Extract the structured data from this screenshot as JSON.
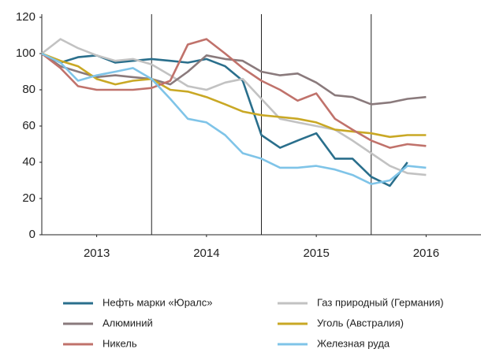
{
  "chart_data": {
    "type": "line",
    "x": [
      2013,
      2013.17,
      2013.33,
      2013.5,
      2013.67,
      2013.83,
      2014,
      2014.17,
      2014.33,
      2014.5,
      2014.67,
      2014.83,
      2015,
      2015.17,
      2015.33,
      2015.5,
      2015.67,
      2015.83,
      2016,
      2016.17,
      2016.33,
      2016.5
    ],
    "series": [
      {
        "name": "Нефть марки «Юралс»",
        "color": "#2a6f8c",
        "values": [
          100,
          95,
          98,
          99,
          95,
          96,
          97,
          96,
          95,
          97,
          93,
          85,
          55,
          48,
          52,
          56,
          42,
          42,
          32,
          27,
          40,
          null
        ]
      },
      {
        "name": "Газ природный (Германия)",
        "color": "#c2c2c2",
        "values": [
          100,
          108,
          103,
          99,
          96,
          97,
          94,
          88,
          82,
          80,
          84,
          86,
          75,
          64,
          62,
          60,
          58,
          52,
          45,
          38,
          34,
          33
        ]
      },
      {
        "name": "Алюминий",
        "color": "#8a7a7c",
        "values": [
          100,
          93,
          90,
          87,
          88,
          87,
          86,
          83,
          90,
          99,
          97,
          96,
          90,
          88,
          89,
          84,
          77,
          76,
          72,
          73,
          75,
          76
        ]
      },
      {
        "name": "Уголь (Австралия)",
        "color": "#c9a825",
        "values": [
          100,
          96,
          93,
          86,
          83,
          85,
          86,
          80,
          79,
          76,
          72,
          68,
          66,
          65,
          64,
          62,
          58,
          57,
          56,
          54,
          55,
          55
        ]
      },
      {
        "name": "Никель",
        "color": "#c0726b",
        "values": [
          100,
          92,
          82,
          80,
          80,
          80,
          81,
          85,
          105,
          108,
          100,
          92,
          85,
          80,
          74,
          78,
          64,
          58,
          52,
          48,
          50,
          49
        ]
      },
      {
        "name": "Железная руда",
        "color": "#7fc4e8",
        "values": [
          100,
          95,
          85,
          88,
          90,
          92,
          86,
          75,
          64,
          62,
          55,
          45,
          42,
          37,
          37,
          38,
          36,
          33,
          28,
          30,
          38,
          37
        ]
      }
    ],
    "xlim": [
      2013,
      2017
    ],
    "xticks": [
      {
        "value": 2013.5,
        "label": "2013"
      },
      {
        "value": 2014.5,
        "label": "2014"
      },
      {
        "value": 2015.5,
        "label": "2015"
      },
      {
        "value": 2016.5,
        "label": "2016"
      }
    ],
    "year_dividers": [
      2014,
      2015,
      2016
    ],
    "ylim": [
      0,
      120
    ],
    "yticks": [
      0,
      20,
      40,
      60,
      80,
      100,
      120
    ],
    "grid": false
  }
}
